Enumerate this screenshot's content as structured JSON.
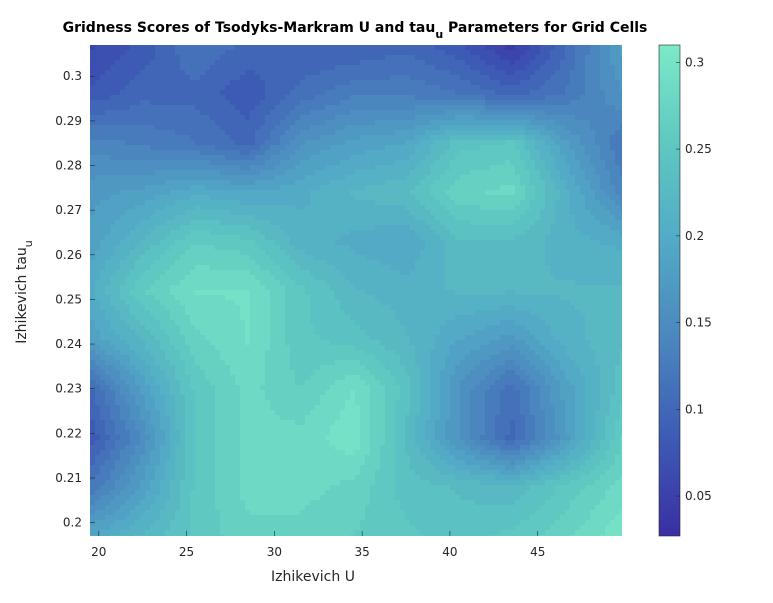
{
  "chart_data": {
    "type": "heatmap",
    "title": {
      "main": "Gridness Scores of Tsodyks-Markram U and tau",
      "sub": "u",
      "rest": " Parameters for Grid Cells"
    },
    "xlabel": "Izhikevich U",
    "ylabel": {
      "main": "Izhikevich tau",
      "sub": "u"
    },
    "xlim": [
      19.5,
      49.8
    ],
    "ylim": [
      0.197,
      0.307
    ],
    "xticks": [
      "20",
      "25",
      "30",
      "35",
      "40",
      "45"
    ],
    "xtick_values": [
      20,
      25,
      30,
      35,
      40,
      45
    ],
    "yticks": [
      "0.2",
      "0.21",
      "0.22",
      "0.23",
      "0.24",
      "0.25",
      "0.26",
      "0.27",
      "0.28",
      "0.29",
      "0.3"
    ],
    "ytick_values": [
      0.2,
      0.21,
      0.22,
      0.23,
      0.24,
      0.25,
      0.26,
      0.27,
      0.28,
      0.29,
      0.3
    ],
    "colorbar": {
      "range": [
        0.027,
        0.31
      ],
      "ticks": [
        "0.05",
        "0.1",
        "0.15",
        "0.2",
        "0.25",
        "0.3"
      ],
      "tick_values": [
        0.05,
        0.1,
        0.15,
        0.2,
        0.25,
        0.3
      ],
      "colors": [
        "#3a2fa3",
        "#3d5bb5",
        "#4b86be",
        "#52aac6",
        "#5fc8c0",
        "#7ce9c8"
      ]
    },
    "x": [
      19.5,
      22.5,
      25.5,
      28.5,
      31.5,
      34.5,
      37.5,
      40.5,
      43.5,
      46.5,
      49.8
    ],
    "y": [
      0.197,
      0.208,
      0.219,
      0.23,
      0.241,
      0.252,
      0.263,
      0.274,
      0.285,
      0.296,
      0.307
    ],
    "values": [
      [
        0.19,
        0.22,
        0.25,
        0.27,
        0.27,
        0.26,
        0.25,
        0.24,
        0.25,
        0.27,
        0.3
      ],
      [
        0.12,
        0.18,
        0.25,
        0.28,
        0.28,
        0.27,
        0.24,
        0.23,
        0.22,
        0.25,
        0.28
      ],
      [
        0.08,
        0.15,
        0.25,
        0.28,
        0.28,
        0.3,
        0.23,
        0.16,
        0.1,
        0.17,
        0.26
      ],
      [
        0.1,
        0.18,
        0.25,
        0.28,
        0.26,
        0.29,
        0.24,
        0.16,
        0.11,
        0.18,
        0.24
      ],
      [
        0.18,
        0.22,
        0.27,
        0.29,
        0.25,
        0.24,
        0.22,
        0.19,
        0.17,
        0.21,
        0.23
      ],
      [
        0.2,
        0.26,
        0.29,
        0.29,
        0.25,
        0.22,
        0.21,
        0.22,
        0.22,
        0.22,
        0.22
      ],
      [
        0.18,
        0.22,
        0.26,
        0.25,
        0.21,
        0.2,
        0.19,
        0.23,
        0.23,
        0.21,
        0.2
      ],
      [
        0.17,
        0.18,
        0.2,
        0.19,
        0.2,
        0.22,
        0.23,
        0.27,
        0.28,
        0.21,
        0.14
      ],
      [
        0.14,
        0.13,
        0.12,
        0.1,
        0.16,
        0.18,
        0.19,
        0.24,
        0.25,
        0.18,
        0.12
      ],
      [
        0.08,
        0.1,
        0.1,
        0.08,
        0.11,
        0.13,
        0.13,
        0.12,
        0.1,
        0.12,
        0.16
      ],
      [
        0.06,
        0.08,
        0.12,
        0.1,
        0.09,
        0.09,
        0.1,
        0.08,
        0.04,
        0.1,
        0.18
      ]
    ]
  }
}
